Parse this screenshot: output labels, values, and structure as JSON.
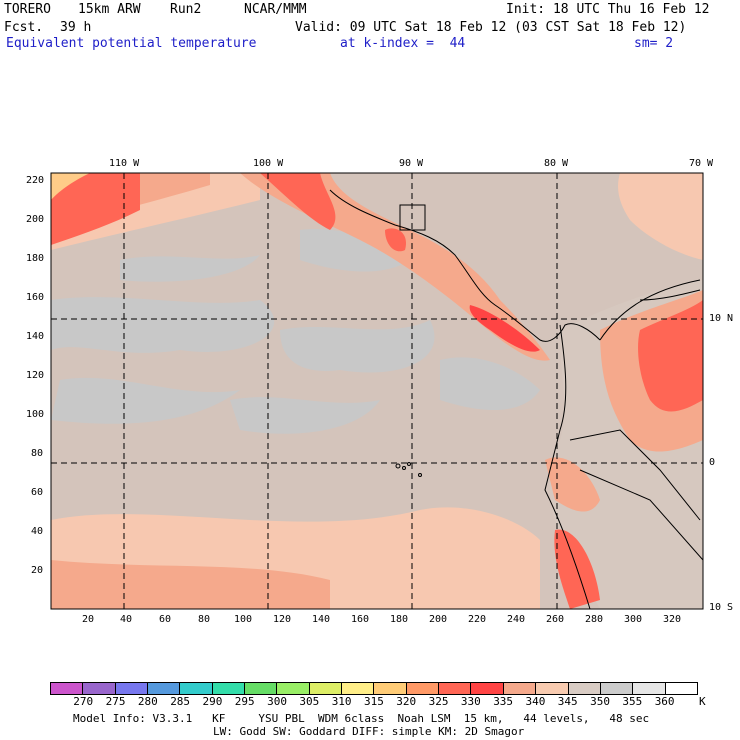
{
  "header": {
    "model": "TORERO",
    "resolution": "15km ARW",
    "run": "Run2",
    "org": "NCAR/MMM",
    "init": "Init: 18 UTC Thu 16 Feb 12",
    "fcst_label": "Fcst.",
    "fcst_hours": "39 h",
    "valid": "Valid: 09 UTC Sat 18 Feb 12 (03 CST Sat 18 Feb 12)",
    "field": "Equivalent potential temperature",
    "level": "at k-index =  44",
    "smoothing": "sm= 2"
  },
  "map": {
    "lon_labels": [
      "110 W",
      "100 W",
      "90 W",
      "80 W",
      "70 W"
    ],
    "lat_labels": [
      "10 N",
      "0",
      "10 S"
    ],
    "y_ticks": [
      "220",
      "200",
      "180",
      "160",
      "140",
      "120",
      "100",
      "80",
      "60",
      "40",
      "20"
    ],
    "x_ticks": [
      "20",
      "40",
      "60",
      "80",
      "100",
      "120",
      "140",
      "160",
      "180",
      "200",
      "220",
      "240",
      "260",
      "280",
      "300",
      "320"
    ]
  },
  "colorbar": {
    "values": [
      "270",
      "275",
      "280",
      "285",
      "290",
      "295",
      "300",
      "305",
      "310",
      "315",
      "320",
      "325",
      "330",
      "335",
      "340",
      "345",
      "350",
      "355",
      "360"
    ],
    "unit": "K",
    "colors": [
      "#cc55cc",
      "#9966cc",
      "#7777ee",
      "#5599dd",
      "#33cccc",
      "#33ddaa",
      "#66dd66",
      "#99ee66",
      "#ddee66",
      "#ffee88",
      "#ffcc77",
      "#ff9966",
      "#ff6655",
      "#ff4444",
      "#f5a98c",
      "#f8cbb0",
      "#d9ccc4",
      "#cccccc",
      "#e6e6e6",
      "#ffffff"
    ]
  },
  "footer": {
    "line1": "Model Info: V3.3.1   KF     YSU PBL  WDM 6class  Noah LSM  15 km,   44 levels,   48 sec",
    "line2": "LW: Godd SW: Goddard DIFF: simple KM: 2D Smagor"
  }
}
